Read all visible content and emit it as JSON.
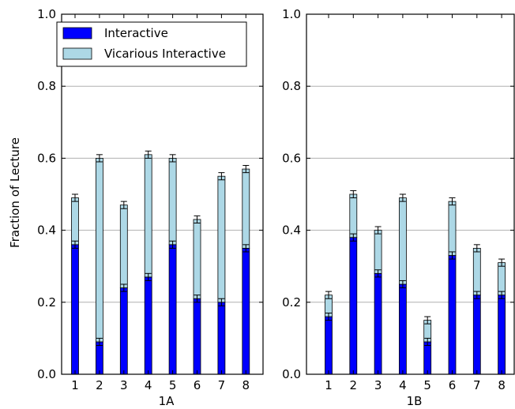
{
  "colors": {
    "interactive": "#0000ff",
    "vicarious": "#add8e6",
    "grid": "#b0b0b0",
    "errorbar": "#000000"
  },
  "chart_data": [
    {
      "type": "bar",
      "stacked": true,
      "panel": "1A",
      "xlabel": "1A",
      "ylabel": "Fraction of Lecture",
      "ylim": [
        0,
        1.0
      ],
      "yticks": [
        "0.0",
        "0.2",
        "0.4",
        "0.6",
        "0.8",
        "1.0"
      ],
      "categories": [
        "1",
        "2",
        "3",
        "4",
        "5",
        "6",
        "7",
        "8"
      ],
      "grid": "horizontal",
      "legend_position": "top-left",
      "series": [
        {
          "name": "Interactive",
          "values": [
            0.36,
            0.09,
            0.24,
            0.27,
            0.36,
            0.21,
            0.2,
            0.35
          ]
        },
        {
          "name": "Vicarious Interactive",
          "values": [
            0.13,
            0.51,
            0.23,
            0.34,
            0.24,
            0.22,
            0.35,
            0.22
          ]
        }
      ],
      "totals": [
        0.49,
        0.6,
        0.47,
        0.61,
        0.6,
        0.43,
        0.55,
        0.57
      ]
    },
    {
      "type": "bar",
      "stacked": true,
      "panel": "1B",
      "xlabel": "1B",
      "ylabel": "",
      "ylim": [
        0,
        1.0
      ],
      "yticks": [
        "0.0",
        "0.2",
        "0.4",
        "0.6",
        "0.8",
        "1.0"
      ],
      "categories": [
        "1",
        "2",
        "3",
        "4",
        "5",
        "6",
        "7",
        "8"
      ],
      "grid": "horizontal",
      "series": [
        {
          "name": "Interactive",
          "values": [
            0.16,
            0.38,
            0.28,
            0.25,
            0.09,
            0.33,
            0.22,
            0.22
          ]
        },
        {
          "name": "Vicarious Interactive",
          "values": [
            0.06,
            0.12,
            0.12,
            0.24,
            0.06,
            0.15,
            0.13,
            0.09
          ]
        }
      ],
      "totals": [
        0.22,
        0.5,
        0.4,
        0.49,
        0.15,
        0.48,
        0.35,
        0.31
      ]
    }
  ],
  "legend": {
    "items": [
      "Interactive",
      "Vicarious Interactive"
    ]
  }
}
